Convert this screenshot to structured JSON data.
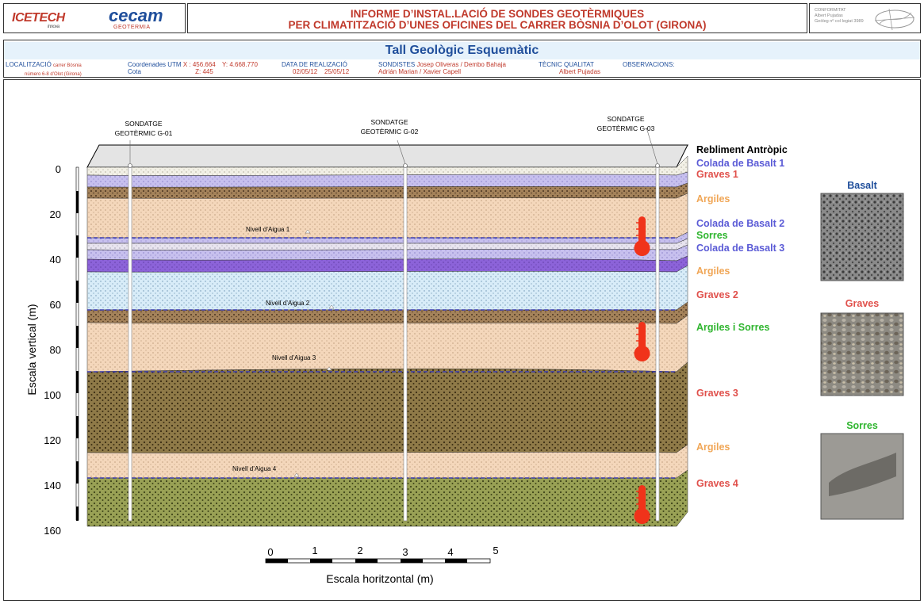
{
  "header": {
    "logo1": "ICETECH",
    "logo1_sub": "innova",
    "logo2": "cecam",
    "logo2_sub": "GEOTERMIA",
    "title_line1": "INFORME D’INSTAL.LACIÓ DE SONDES GEOTÈRMIQUES",
    "title_line2": "PER CLIMATITZACIÓ D’UNES OFICINES DEL CARRER BÒSNIA D’OLOT (GIRONA)",
    "conformitat_lines": [
      "CONFORMITAT",
      "Albert Pujadas",
      "Geòleg nº col·legiat 3989"
    ]
  },
  "subtitle": "Tall Geològic Esquemàtic",
  "info": {
    "localitzacio_label": "LOCALITZACIÓ",
    "localitzacio_value": "carrer Bòsnia",
    "localitzacio_value2": "número 6-8 d’Olot (Girona)",
    "coord_label": "Coordenades UTM",
    "coord_x": "X : 456.664",
    "coord_y": "Y: 4.668.770",
    "cota_label": "Cota",
    "cota_value": "Z: 445",
    "data_label": "DATA DE REALIZACIÓ",
    "data_values": "02/05/12    25/05/12",
    "sondistes_label": "SONDISTES",
    "sondistes_value": "Josep Oliveras / Dembo Bahaja",
    "sondistes_value2": "Adrián Marian  / Xavier Capell",
    "tecnic_label": "TÈCNIC QUALITAT",
    "tecnic_value": "Albert Pujadas",
    "observacions_label": "OBSERVACIONS:"
  },
  "diagram": {
    "y_axis_label": "Escala vertical (m)",
    "y_ticks": [
      "0",
      "20",
      "40",
      "60",
      "80",
      "100",
      "120",
      "140",
      "160"
    ],
    "x_axis_label": "Escala horitzontal (m)",
    "x_ticks": [
      "0",
      "1",
      "2",
      "3",
      "4",
      "5"
    ],
    "boreholes": [
      {
        "line1": "SONDATGE",
        "line2": "GEOTÈRMIC G-01"
      },
      {
        "line1": "SONDATGE",
        "line2": "GEOTÈRMIC G-02"
      },
      {
        "line1": "SONDATGE",
        "line2": "GEOTÈRMIC G-03"
      }
    ],
    "water_levels": [
      "Nivell d’Aigua 1",
      "Nivell d’Aigua 2",
      "Nivell d’Aigua 3",
      "Nivell d’Aigua 4"
    ],
    "layers": [
      {
        "name": "Rebliment Antròpic",
        "color": "#000000"
      },
      {
        "name": "Colada de Basalt 1",
        "color": "#5b5bd6"
      },
      {
        "name": "Graves 1",
        "color": "#e0504b"
      },
      {
        "name": "Argiles",
        "color": "#f0a656"
      },
      {
        "name": "Colada de Basalt 2",
        "color": "#5b5bd6"
      },
      {
        "name": "Sorres",
        "color": "#2fb52f"
      },
      {
        "name": "Colada de Basalt 3",
        "color": "#5b5bd6"
      },
      {
        "name": "Argiles",
        "color": "#f0a656"
      },
      {
        "name": "Graves 2",
        "color": "#e0504b"
      },
      {
        "name": "Argiles i Sorres",
        "color": "#2fb52f"
      },
      {
        "name": "Graves 3",
        "color": "#e0504b"
      },
      {
        "name": "Argiles",
        "color": "#f0a656"
      },
      {
        "name": "Graves 4",
        "color": "#e0504b"
      }
    ],
    "samples": [
      {
        "name": "Basalt",
        "color": "#1f4e9b"
      },
      {
        "name": "Graves",
        "color": "#e0504b"
      },
      {
        "name": "Sorres",
        "color": "#2fb52f"
      }
    ]
  }
}
